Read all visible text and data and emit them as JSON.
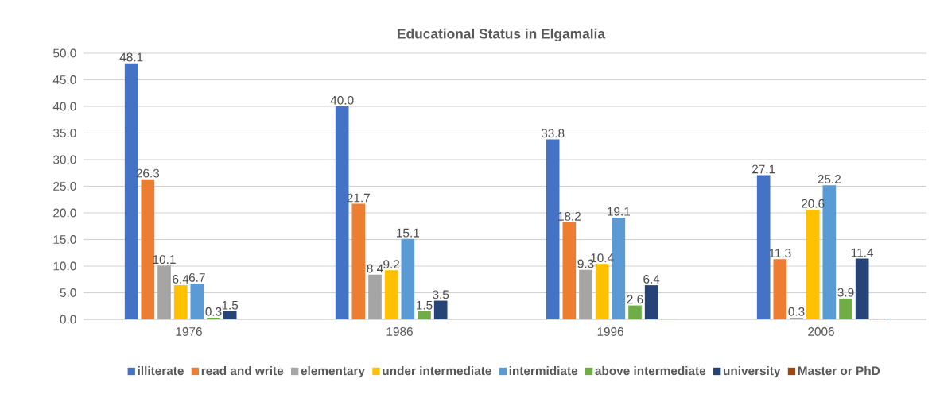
{
  "chart_data": {
    "type": "bar",
    "title": "Educational Status in Elgamalia",
    "categories": [
      "1976",
      "1986",
      "1996",
      "2006"
    ],
    "series": [
      {
        "name": "illiterate",
        "color": "#4472c4",
        "values": [
          48.1,
          40.0,
          33.8,
          27.1
        ],
        "value_labels": [
          "48.1",
          "40.0",
          "33.8",
          "27.1"
        ]
      },
      {
        "name": "read and write",
        "color": "#ed7d31",
        "values": [
          26.3,
          21.7,
          18.2,
          11.3
        ],
        "value_labels": [
          "26.3",
          "21.7",
          "18.2",
          "11.3"
        ]
      },
      {
        "name": "elementary",
        "color": "#a5a5a5",
        "values": [
          10.1,
          8.4,
          9.3,
          0.3
        ],
        "value_labels": [
          "10.1",
          "8.4",
          "9.3",
          "0.3"
        ]
      },
      {
        "name": "under intermediate",
        "color": "#ffc000",
        "values": [
          6.4,
          9.2,
          10.4,
          20.6
        ],
        "value_labels": [
          "6.4",
          "9.2",
          "10.4",
          "20.6"
        ]
      },
      {
        "name": "intermidiate",
        "color": "#5b9bd5",
        "values": [
          6.7,
          15.1,
          19.1,
          25.2
        ],
        "value_labels": [
          "6.7",
          "15.1",
          "19.1",
          "25.2"
        ]
      },
      {
        "name": "above intermediate",
        "color": "#70ad47",
        "values": [
          0.3,
          1.5,
          2.6,
          3.9
        ],
        "value_labels": [
          "0.3",
          "1.5",
          "2.6",
          "3.9"
        ]
      },
      {
        "name": "university",
        "color": "#264478",
        "values": [
          1.5,
          3.5,
          6.4,
          11.4
        ],
        "value_labels": [
          "1.5",
          "3.5",
          "6.4",
          "11.4"
        ]
      },
      {
        "name": "Master or PhD",
        "color": "#9e480e",
        "values": [
          0.0,
          0.0,
          0.1,
          0.1
        ],
        "value_labels": [
          null,
          null,
          null,
          null
        ]
      }
    ],
    "ylim": [
      0,
      50
    ],
    "yticks": [
      {
        "value": 0,
        "label": "0.0"
      },
      {
        "value": 5,
        "label": "5.0"
      },
      {
        "value": 10,
        "label": "10.0"
      },
      {
        "value": 15,
        "label": "15.0"
      },
      {
        "value": 20,
        "label": "20.0"
      },
      {
        "value": 25,
        "label": "25.0"
      },
      {
        "value": 30,
        "label": "30.0"
      },
      {
        "value": 35,
        "label": "35.0"
      },
      {
        "value": 40,
        "label": "40.0"
      },
      {
        "value": 45,
        "label": "45.0"
      },
      {
        "value": 50,
        "label": "50.0"
      }
    ],
    "grid": "y",
    "legend": "bottom"
  }
}
